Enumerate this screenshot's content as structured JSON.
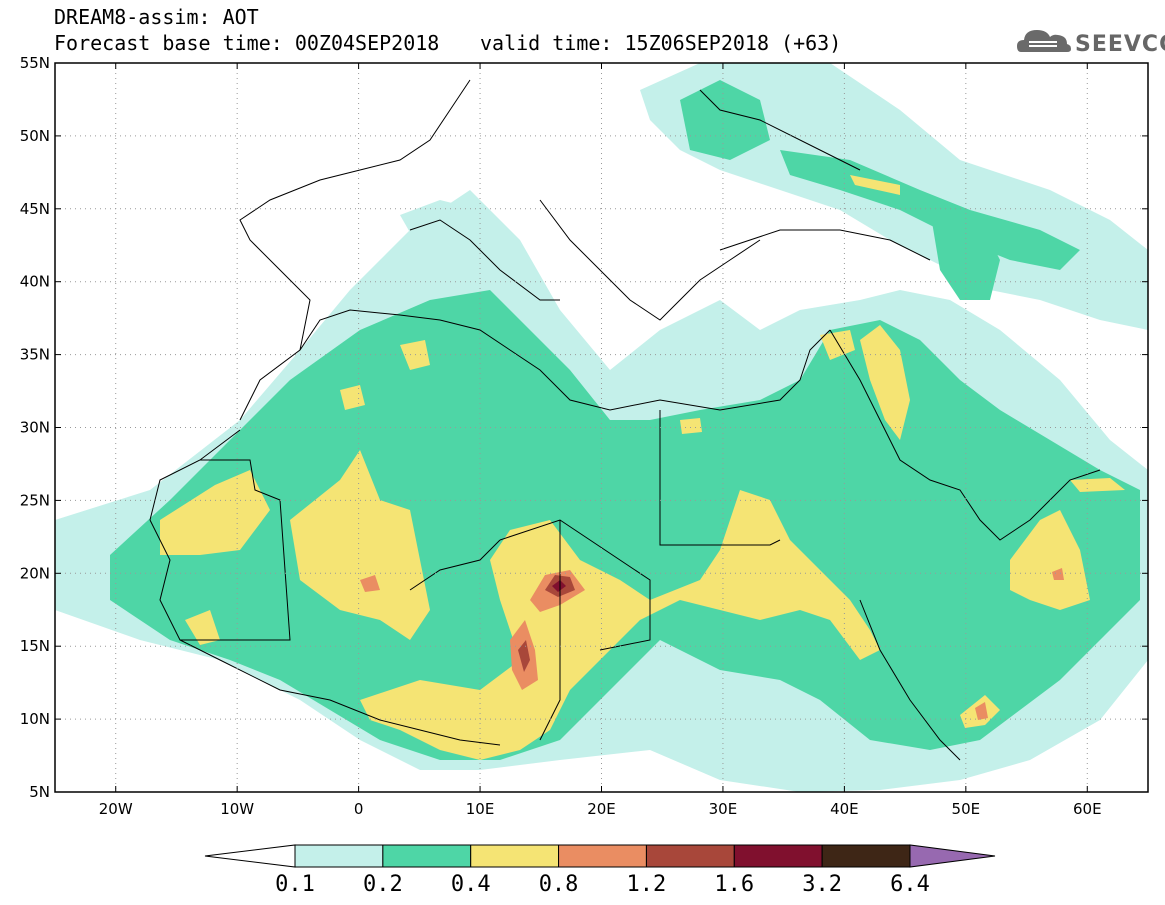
{
  "header": {
    "title": "DREAM8-assim: AOT",
    "base_time": "Forecast base time: 00Z04SEP2018",
    "valid_time": "valid time: 15Z06SEP2018 (+63)"
  },
  "logo": {
    "text": "SEEVCCC",
    "icon": "cloud-icon"
  },
  "map": {
    "projection": "lat-lon",
    "lon_range": [
      -25,
      65
    ],
    "lat_range": [
      5,
      55
    ],
    "lat_ticks": [
      {
        "value": 55,
        "label": "55N"
      },
      {
        "value": 50,
        "label": "50N"
      },
      {
        "value": 45,
        "label": "45N"
      },
      {
        "value": 40,
        "label": "40N"
      },
      {
        "value": 35,
        "label": "35N"
      },
      {
        "value": 30,
        "label": "30N"
      },
      {
        "value": 25,
        "label": "25N"
      },
      {
        "value": 20,
        "label": "20N"
      },
      {
        "value": 15,
        "label": "15N"
      },
      {
        "value": 10,
        "label": "10N"
      },
      {
        "value": 5,
        "label": "5N"
      }
    ],
    "lon_ticks": [
      {
        "value": -20,
        "label": "20W"
      },
      {
        "value": -10,
        "label": "10W"
      },
      {
        "value": 0,
        "label": "0"
      },
      {
        "value": 10,
        "label": "10E"
      },
      {
        "value": 20,
        "label": "20E"
      },
      {
        "value": 30,
        "label": "30E"
      },
      {
        "value": 40,
        "label": "40E"
      },
      {
        "value": 50,
        "label": "50E"
      },
      {
        "value": 60,
        "label": "60E"
      }
    ],
    "grid": "dotted"
  },
  "colorbar": {
    "bins": [
      {
        "color": "#c4f0ea",
        "lower": "0.1"
      },
      {
        "color": "#4ed6a6",
        "lower": "0.2"
      },
      {
        "color": "#f5e474",
        "lower": "0.4"
      },
      {
        "color": "#ea8d62",
        "lower": "0.8"
      },
      {
        "color": "#a8473a",
        "lower": "1.2"
      },
      {
        "color": "#80102e",
        "lower": "1.6"
      },
      {
        "color": "#3e2616",
        "lower": "3.2"
      },
      {
        "color": "#9769b0",
        "lower": "6.4"
      }
    ],
    "under_color": "#ffffff",
    "labels": [
      "0.1",
      "0.2",
      "0.4",
      "0.8",
      "1.2",
      "1.6",
      "3.2",
      "6.4"
    ]
  }
}
